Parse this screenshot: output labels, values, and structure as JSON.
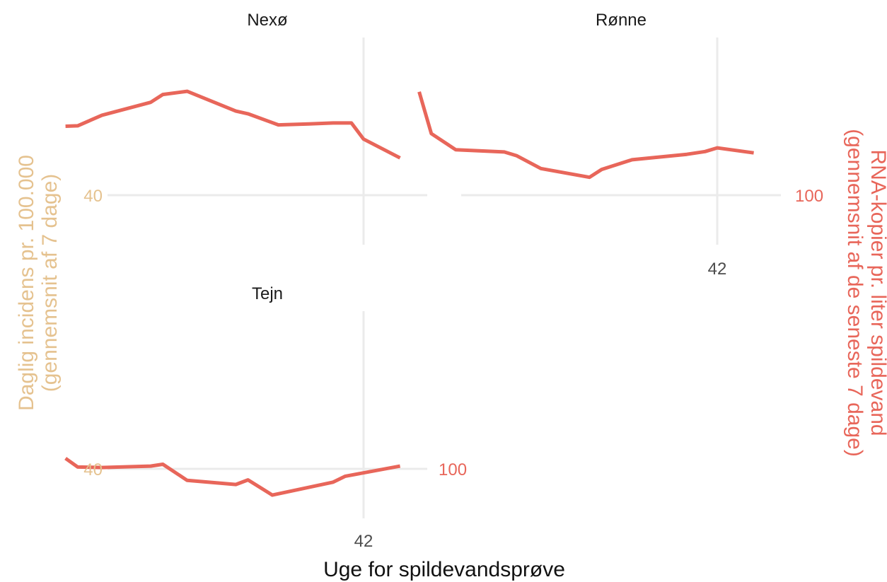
{
  "chart_data": {
    "type": "line",
    "xlabel": "Uge for spildevandsprøve",
    "ylabel_left": "Daglig incidens pr. 100.000\n(gennemsnit af 7 dage)",
    "ylabel_right": "RNA-kopier pr. liter spildevand\n(gennemsnit af de seneste 7 dage)",
    "x_tick": "42",
    "grid": true,
    "legend": "none",
    "colors": {
      "series": "#e8665a",
      "left_axis": "#e5c28f",
      "right_axis": "#e8665a",
      "tick_dark": "#4d4d4d",
      "grid": "#ebebeb"
    },
    "panels": [
      {
        "title": "Nexø",
        "left_ticks": [
          "40"
        ],
        "right_ticks": [],
        "x_ticks": [],
        "series": [
          {
            "x": 39.55,
            "y": 130.0
          },
          {
            "x": 39.65,
            "y": 130.2
          },
          {
            "x": 39.85,
            "y": 134.8
          },
          {
            "x": 40.05,
            "y": 137.6
          },
          {
            "x": 40.25,
            "y": 140.4
          },
          {
            "x": 40.35,
            "y": 143.8
          },
          {
            "x": 40.55,
            "y": 145.2
          },
          {
            "x": 40.95,
            "y": 136.6
          },
          {
            "x": 41.05,
            "y": 135.4
          },
          {
            "x": 41.3,
            "y": 130.6
          },
          {
            "x": 41.55,
            "y": 131.0
          },
          {
            "x": 41.75,
            "y": 131.4
          },
          {
            "x": 41.9,
            "y": 131.4
          },
          {
            "x": 42.0,
            "y": 124.4
          },
          {
            "x": 42.3,
            "y": 116.2
          }
        ]
      },
      {
        "title": "Rønne",
        "left_ticks": [],
        "right_ticks": [
          "100"
        ],
        "x_ticks": [
          "42"
        ],
        "series": [
          {
            "x": 39.55,
            "y": 145.0
          },
          {
            "x": 39.65,
            "y": 126.8
          },
          {
            "x": 39.85,
            "y": 119.8
          },
          {
            "x": 40.25,
            "y": 118.8
          },
          {
            "x": 40.35,
            "y": 117.2
          },
          {
            "x": 40.55,
            "y": 111.6
          },
          {
            "x": 40.95,
            "y": 107.8
          },
          {
            "x": 41.05,
            "y": 111.2
          },
          {
            "x": 41.3,
            "y": 115.4
          },
          {
            "x": 41.75,
            "y": 117.8
          },
          {
            "x": 41.9,
            "y": 119.0
          },
          {
            "x": 42.0,
            "y": 120.6
          },
          {
            "x": 42.3,
            "y": 118.4
          }
        ]
      },
      {
        "title": "Tejn",
        "left_ticks": [
          "40"
        ],
        "right_ticks": [
          "100"
        ],
        "x_ticks": [
          "42"
        ],
        "series": [
          {
            "x": 39.55,
            "y": 104.6
          },
          {
            "x": 39.65,
            "y": 100.8
          },
          {
            "x": 39.85,
            "y": 100.6
          },
          {
            "x": 40.25,
            "y": 101.2
          },
          {
            "x": 40.35,
            "y": 102.0
          },
          {
            "x": 40.55,
            "y": 95.0
          },
          {
            "x": 40.95,
            "y": 93.2
          },
          {
            "x": 41.05,
            "y": 95.2
          },
          {
            "x": 41.25,
            "y": 88.6
          },
          {
            "x": 41.75,
            "y": 94.2
          },
          {
            "x": 41.85,
            "y": 96.8
          },
          {
            "x": 42.3,
            "y": 101.2
          }
        ]
      }
    ]
  }
}
